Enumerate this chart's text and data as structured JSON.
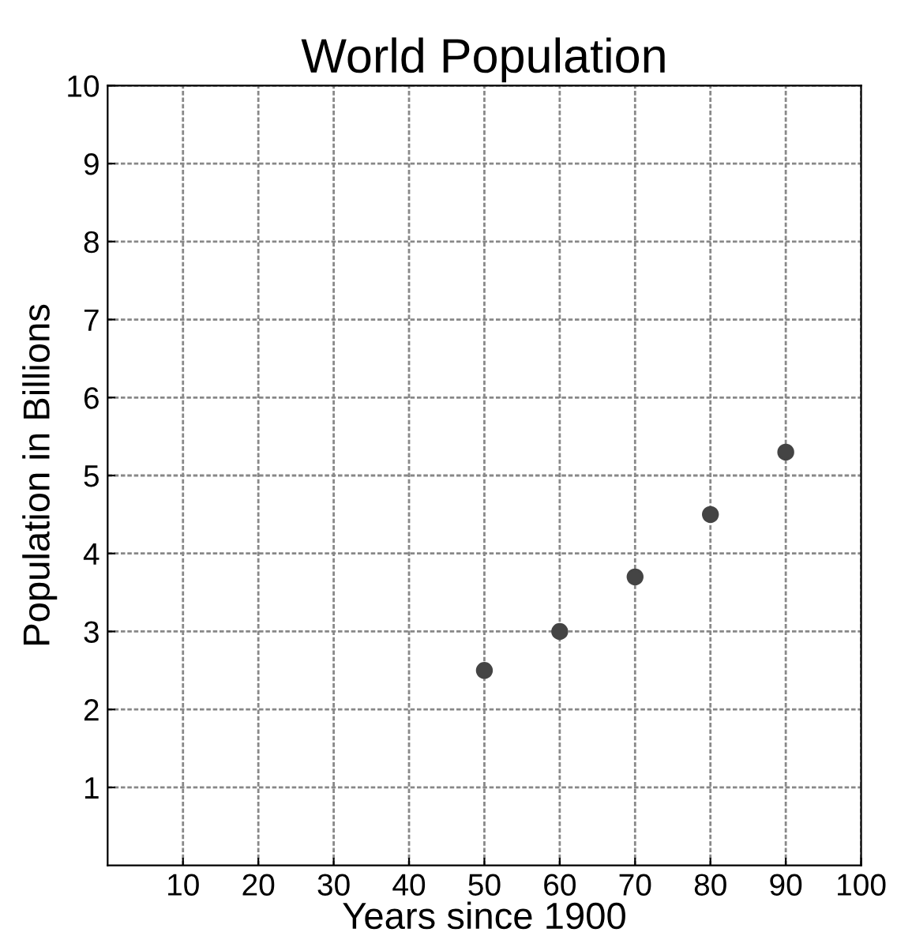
{
  "chart_data": {
    "type": "scatter",
    "title": "World Population",
    "xlabel": "Years since 1900",
    "ylabel": "Population in Billions",
    "x": [
      50,
      60,
      70,
      80,
      90
    ],
    "series": [
      {
        "color": "#444444",
        "values": [
          2.5,
          3.0,
          3.7,
          4.5,
          5.3
        ]
      }
    ],
    "xlim": [
      0,
      100
    ],
    "xticks": [
      10,
      20,
      30,
      40,
      50,
      60,
      70,
      80,
      90,
      100
    ],
    "ylim": [
      0,
      10
    ],
    "yticks": [
      1,
      2,
      3,
      4,
      5,
      6,
      7,
      8,
      9,
      10
    ],
    "grid": true,
    "marker": "circle"
  }
}
